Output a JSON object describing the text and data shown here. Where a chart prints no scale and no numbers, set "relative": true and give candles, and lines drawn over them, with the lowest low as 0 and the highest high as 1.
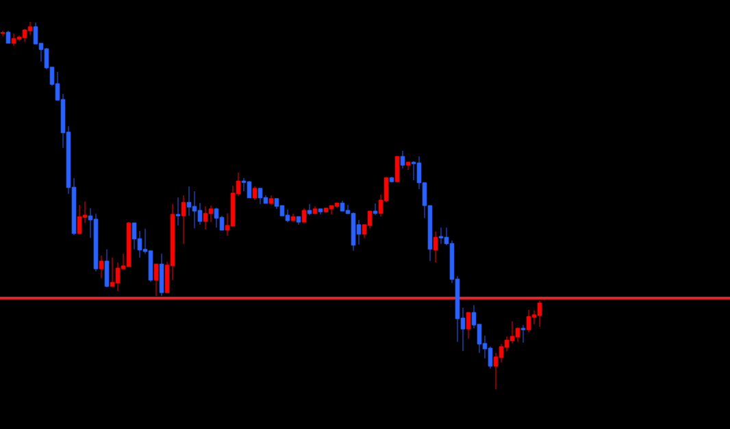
{
  "chart_data": {
    "type": "candlestick",
    "relative": true,
    "tick_labels": false,
    "categories": [
      null,
      null,
      null,
      null,
      null,
      null,
      null,
      null,
      null,
      null,
      null,
      null,
      null,
      null,
      null,
      null,
      null,
      null,
      null,
      null,
      null,
      null,
      null,
      null,
      null,
      null,
      null,
      null,
      null,
      null,
      null,
      null,
      null,
      null,
      null,
      null,
      null,
      null,
      null,
      null,
      null,
      null,
      null,
      null,
      null,
      null,
      null,
      null,
      null,
      null,
      null,
      null,
      null,
      null,
      null,
      null,
      null,
      null,
      null,
      null,
      null,
      null,
      null,
      null,
      null,
      null,
      null,
      null,
      null,
      null,
      null,
      null,
      null,
      null,
      null,
      null,
      null,
      null,
      null,
      null,
      null,
      null,
      null,
      null,
      null,
      null,
      null,
      null,
      null,
      null,
      null,
      null,
      null,
      null,
      null,
      null,
      null,
      null,
      null
    ],
    "ohlc": [
      [
        0.969,
        0.976,
        0.961,
        0.971
      ],
      [
        0.972,
        0.976,
        0.942,
        0.942
      ],
      [
        0.942,
        0.968,
        0.935,
        0.955
      ],
      [
        0.953,
        0.963,
        0.948,
        0.959
      ],
      [
        0.957,
        0.981,
        0.946,
        0.978
      ],
      [
        0.976,
        1,
        0.965,
        0.987
      ],
      [
        0.987,
        0.998,
        0.94,
        0.94
      ],
      [
        0.942,
        0.942,
        0.892,
        0.925
      ],
      [
        0.927,
        0.929,
        0.871,
        0.875
      ],
      [
        0.877,
        0.877,
        0.826,
        0.83
      ],
      [
        0.832,
        0.864,
        0.787,
        0.787
      ],
      [
        0.789,
        0.804,
        0.657,
        0.698
      ],
      [
        0.7,
        0.716,
        0.532,
        0.549
      ],
      [
        0.55,
        0.575,
        0.42,
        0.424
      ],
      [
        0.424,
        0.502,
        0.424,
        0.47
      ],
      [
        0.468,
        0.511,
        0.453,
        0.474
      ],
      [
        0.472,
        0.493,
        0.412,
        0.461
      ],
      [
        0.463,
        0.478,
        0.321,
        0.328
      ],
      [
        0.328,
        0.364,
        0.302,
        0.349
      ],
      [
        0.349,
        0.381,
        0.278,
        0.28
      ],
      [
        0.28,
        0.358,
        0.28,
        0.291
      ],
      [
        0.289,
        0.345,
        0.267,
        0.33
      ],
      [
        0.328,
        0.369,
        0.328,
        0.336
      ],
      [
        0.334,
        0.455,
        0.334,
        0.453
      ],
      [
        0.453,
        0.453,
        0.381,
        0.409
      ],
      [
        0.41,
        0.431,
        0.358,
        0.379
      ],
      [
        0.381,
        0.437,
        0.369,
        0.375
      ],
      [
        0.377,
        0.377,
        0.293,
        0.297
      ],
      [
        0.297,
        0.341,
        0.254,
        0.341
      ],
      [
        0.341,
        0.369,
        0.254,
        0.263
      ],
      [
        0.263,
        0.347,
        0.263,
        0.338
      ],
      [
        0.336,
        0.504,
        0.297,
        0.476
      ],
      [
        0.476,
        0.522,
        0.446,
        0.472
      ],
      [
        0.472,
        0.528,
        0.396,
        0.509
      ],
      [
        0.509,
        0.552,
        0.472,
        0.496
      ],
      [
        0.498,
        0.539,
        0.438,
        0.485
      ],
      [
        0.487,
        0.507,
        0.448,
        0.457
      ],
      [
        0.457,
        0.498,
        0.435,
        0.479
      ],
      [
        0.478,
        0.5,
        0.455,
        0.491
      ],
      [
        0.491,
        0.494,
        0.44,
        0.466
      ],
      [
        0.468,
        0.472,
        0.433,
        0.433
      ],
      [
        0.433,
        0.479,
        0.418,
        0.446
      ],
      [
        0.444,
        0.554,
        0.444,
        0.534
      ],
      [
        0.532,
        0.59,
        0.526,
        0.567
      ],
      [
        0.567,
        0.575,
        0.539,
        0.563
      ],
      [
        0.565,
        0.567,
        0.521,
        0.521
      ],
      [
        0.521,
        0.552,
        0.515,
        0.547
      ],
      [
        0.547,
        0.547,
        0.504,
        0.521
      ],
      [
        0.522,
        0.528,
        0.506,
        0.506
      ],
      [
        0.506,
        0.528,
        0.502,
        0.519
      ],
      [
        0.519,
        0.519,
        0.491,
        0.498
      ],
      [
        0.5,
        0.5,
        0.472,
        0.472
      ],
      [
        0.474,
        0.489,
        0.455,
        0.459
      ],
      [
        0.459,
        0.478,
        0.457,
        0.47
      ],
      [
        0.47,
        0.47,
        0.448,
        0.455
      ],
      [
        0.455,
        0.493,
        0.455,
        0.487
      ],
      [
        0.487,
        0.504,
        0.474,
        0.478
      ],
      [
        0.478,
        0.498,
        0.478,
        0.491
      ],
      [
        0.491,
        0.491,
        0.476,
        0.483
      ],
      [
        0.483,
        0.494,
        0.481,
        0.493
      ],
      [
        0.491,
        0.5,
        0.476,
        0.5
      ],
      [
        0.498,
        0.507,
        0.494,
        0.507
      ],
      [
        0.507,
        0.513,
        0.485,
        0.485
      ],
      [
        0.487,
        0.502,
        0.478,
        0.478
      ],
      [
        0.479,
        0.481,
        0.377,
        0.392
      ],
      [
        0.448,
        0.461,
        0.394,
        0.422
      ],
      [
        0.422,
        0.448,
        0.412,
        0.448
      ],
      [
        0.446,
        0.485,
        0.438,
        0.485
      ],
      [
        0.485,
        0.506,
        0.474,
        0.479
      ],
      [
        0.479,
        0.53,
        0.47,
        0.515
      ],
      [
        0.513,
        0.578,
        0.509,
        0.576
      ],
      [
        0.576,
        0.578,
        0.563,
        0.565
      ],
      [
        0.565,
        0.634,
        0.565,
        0.634
      ],
      [
        0.634,
        0.649,
        0.601,
        0.61
      ],
      [
        0.61,
        0.618,
        0.597,
        0.618
      ],
      [
        0.618,
        0.621,
        0.569,
        0.614
      ],
      [
        0.616,
        0.634,
        0.545,
        0.562
      ],
      [
        0.562,
        0.562,
        0.466,
        0.5
      ],
      [
        0.5,
        0.5,
        0.349,
        0.381
      ],
      [
        0.379,
        0.429,
        0.345,
        0.414
      ],
      [
        0.416,
        0.44,
        0.396,
        0.412
      ],
      [
        0.414,
        0.44,
        0.392,
        0.396
      ],
      [
        0.397,
        0.405,
        0.289,
        0.299
      ],
      [
        0.3,
        0.308,
        0.129,
        0.192
      ],
      [
        0.194,
        0.222,
        0.104,
        0.164
      ],
      [
        0.164,
        0.209,
        0.138,
        0.209
      ],
      [
        0.209,
        0.229,
        0.166,
        0.175
      ],
      [
        0.177,
        0.177,
        0.099,
        0.123
      ],
      [
        0.125,
        0.146,
        0.084,
        0.11
      ],
      [
        0.112,
        0.116,
        0.056,
        0.063
      ],
      [
        0.063,
        0.099,
        0,
        0.088
      ],
      [
        0.086,
        0.123,
        0.073,
        0.116
      ],
      [
        0.114,
        0.144,
        0.103,
        0.134
      ],
      [
        0.132,
        0.185,
        0.125,
        0.144
      ],
      [
        0.142,
        0.168,
        0.129,
        0.166
      ],
      [
        0.166,
        0.175,
        0.127,
        0.162
      ],
      [
        0.162,
        0.216,
        0.155,
        0.198
      ],
      [
        0.196,
        0.215,
        0.177,
        0.203
      ],
      [
        0.201,
        0.241,
        0.17,
        0.235
      ]
    ],
    "colors": [
      "#ff0000",
      "#2962ff",
      "#ff0000",
      "#ff0000",
      "#ff0000",
      "#ff0000",
      "#2962ff",
      "#2962ff",
      "#2962ff",
      "#2962ff",
      "#2962ff",
      "#2962ff",
      "#2962ff",
      "#2962ff",
      "#ff0000",
      "#ff0000",
      "#2962ff",
      "#2962ff",
      "#ff0000",
      "#2962ff",
      "#ff0000",
      "#ff0000",
      "#ff0000",
      "#ff0000",
      "#2962ff",
      "#2962ff",
      "#2962ff",
      "#2962ff",
      "#ff0000",
      "#2962ff",
      "#ff0000",
      "#ff0000",
      "#2962ff",
      "#ff0000",
      "#2962ff",
      "#2962ff",
      "#2962ff",
      "#ff0000",
      "#ff0000",
      "#2962ff",
      "#2962ff",
      "#ff0000",
      "#ff0000",
      "#ff0000",
      "#2962ff",
      "#2962ff",
      "#ff0000",
      "#2962ff",
      "#2962ff",
      "#ff0000",
      "#2962ff",
      "#2962ff",
      "#2962ff",
      "#ff0000",
      "#2962ff",
      "#ff0000",
      "#2962ff",
      "#ff0000",
      "#2962ff",
      "#ff0000",
      "#ff0000",
      "#ff0000",
      "#2962ff",
      "#2962ff",
      "#2962ff",
      "#2962ff",
      "#ff0000",
      "#ff0000",
      "#2962ff",
      "#ff0000",
      "#ff0000",
      "#2962ff",
      "#ff0000",
      "#2962ff",
      "#ff0000",
      "#2962ff",
      "#2962ff",
      "#2962ff",
      "#2962ff",
      "#ff0000",
      "#2962ff",
      "#2962ff",
      "#2962ff",
      "#2962ff",
      "#2962ff",
      "#ff0000",
      "#2962ff",
      "#2962ff",
      "#2962ff",
      "#2962ff",
      "#ff0000",
      "#ff0000",
      "#ff0000",
      "#ff0000",
      "#ff0000",
      "#2962ff",
      "#ff0000",
      "#ff0000",
      "#ff0000"
    ],
    "ref_lines": [
      {
        "axis": "y",
        "value": 0.248,
        "color": "#e8202a"
      }
    ]
  }
}
